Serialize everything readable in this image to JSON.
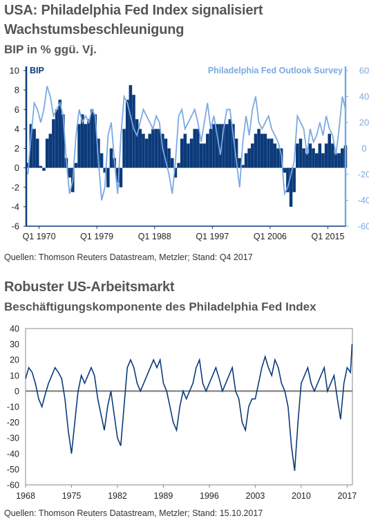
{
  "chart_data": [
    {
      "type": "bar",
      "title": "USA: Philadelphia Fed Index signalisiert Wachstumsbeschleunigung",
      "subtitle": "BIP in % ggü. Vj.",
      "source": "Quellen: Thomson Reuters Datastream, Metzler; Stand: Q4 2017",
      "left_axis_label": "BIP",
      "right_axis_label": "Philadelphia Fed Outlook Survey",
      "ylim": [
        -6,
        10
      ],
      "y_ticks": [
        "10",
        "8",
        "6",
        "4",
        "2",
        "0",
        "-2",
        "-4",
        "-6"
      ],
      "y2lim": [
        -60,
        60
      ],
      "y2_ticks": [
        "60",
        "40",
        "20",
        "0",
        "-20",
        "-40",
        "-60"
      ],
      "x_tick_labels": [
        "Q1 1970",
        "Q1 1979",
        "Q1 1988",
        "Q1 1997",
        "Q1 2006",
        "Q1 2015"
      ],
      "xlim": [
        1968.0,
        2017.75
      ],
      "colors": {
        "bars": "#0b3a7a",
        "line": "#7aa9e3",
        "axis_left": "#0b3a7a",
        "axis_right": "#7aa9e3"
      },
      "series": [
        {
          "name": "BIP",
          "kind": "bar",
          "x": [
            1968,
            1968.5,
            1969,
            1969.5,
            1970,
            1970.5,
            1971,
            1971.5,
            1972,
            1972.5,
            1973,
            1973.5,
            1974,
            1974.5,
            1975,
            1975.5,
            1976,
            1976.5,
            1977,
            1977.5,
            1978,
            1978.5,
            1979,
            1979.5,
            1980,
            1980.5,
            1981,
            1981.5,
            1982,
            1982.5,
            1983,
            1983.5,
            1984,
            1984.5,
            1985,
            1985.5,
            1986,
            1986.5,
            1987,
            1987.5,
            1988,
            1988.5,
            1989,
            1989.5,
            1990,
            1990.5,
            1991,
            1991.5,
            1992,
            1992.5,
            1993,
            1993.5,
            1994,
            1994.5,
            1995,
            1995.5,
            1996,
            1996.5,
            1997,
            1997.5,
            1998,
            1998.5,
            1999,
            1999.5,
            2000,
            2000.5,
            2001,
            2001.5,
            2002,
            2002.5,
            2003,
            2003.5,
            2004,
            2004.5,
            2005,
            2005.5,
            2006,
            2006.5,
            2007,
            2007.5,
            2008,
            2008.5,
            2009,
            2009.5,
            2010,
            2010.5,
            2011,
            2011.5,
            2012,
            2012.5,
            2013,
            2013.5,
            2014,
            2014.5,
            2015,
            2015.5,
            2016,
            2016.5,
            2017,
            2017.5
          ],
          "values": [
            0.5,
            4.5,
            4.0,
            3.0,
            0.2,
            -0.3,
            3.0,
            3.5,
            5.0,
            6.0,
            7.0,
            5.5,
            1.0,
            -1.0,
            -2.5,
            0.5,
            4.5,
            5.5,
            4.5,
            5.0,
            6.0,
            5.5,
            3.0,
            1.5,
            -0.5,
            -2.0,
            2.0,
            1.0,
            -1.5,
            -2.0,
            4.0,
            7.0,
            8.5,
            7.5,
            5.0,
            4.0,
            3.5,
            3.0,
            3.5,
            4.0,
            4.0,
            4.0,
            3.5,
            3.0,
            2.0,
            1.0,
            -1.0,
            0.5,
            3.0,
            3.5,
            2.5,
            3.0,
            4.0,
            4.0,
            2.5,
            2.5,
            3.5,
            4.0,
            4.5,
            4.5,
            4.5,
            4.5,
            4.5,
            5.0,
            4.5,
            3.0,
            1.0,
            0.3,
            1.5,
            2.0,
            2.5,
            3.5,
            4.0,
            3.5,
            3.5,
            3.0,
            3.0,
            2.5,
            2.0,
            2.0,
            -0.5,
            -2.5,
            -4.0,
            -2.5,
            2.5,
            3.0,
            2.0,
            1.5,
            2.5,
            2.0,
            1.5,
            2.5,
            1.5,
            2.5,
            3.5,
            2.5,
            1.5,
            1.5,
            2.0,
            2.3
          ]
        },
        {
          "name": "Philadelphia Fed Outlook Survey",
          "kind": "line",
          "axis": "right",
          "x": [
            1968,
            1968.5,
            1969,
            1969.5,
            1970,
            1970.5,
            1971,
            1971.5,
            1972,
            1972.5,
            1973,
            1973.5,
            1974,
            1974.5,
            1975,
            1975.5,
            1976,
            1976.5,
            1977,
            1977.5,
            1978,
            1978.5,
            1979,
            1979.5,
            1980,
            1980.5,
            1981,
            1981.5,
            1982,
            1982.5,
            1983,
            1983.5,
            1984,
            1984.5,
            1985,
            1985.5,
            1986,
            1986.5,
            1987,
            1987.5,
            1988,
            1988.5,
            1989,
            1989.5,
            1990,
            1990.5,
            1991,
            1991.5,
            1992,
            1992.5,
            1993,
            1993.5,
            1994,
            1994.5,
            1995,
            1995.5,
            1996,
            1996.5,
            1997,
            1997.5,
            1998,
            1998.5,
            1999,
            1999.5,
            2000,
            2000.5,
            2001,
            2001.5,
            2002,
            2002.5,
            2003,
            2003.5,
            2004,
            2004.5,
            2005,
            2005.5,
            2006,
            2006.5,
            2007,
            2007.5,
            2008,
            2008.5,
            2009,
            2009.5,
            2010,
            2010.5,
            2011,
            2011.5,
            2012,
            2012.5,
            2013,
            2013.5,
            2014,
            2014.5,
            2015,
            2015.5,
            2016,
            2016.5,
            2017,
            2017.5
          ],
          "values": [
            -20,
            10,
            35,
            30,
            20,
            30,
            48,
            40,
            25,
            30,
            35,
            25,
            -10,
            -35,
            -25,
            10,
            30,
            20,
            25,
            20,
            30,
            25,
            -10,
            -40,
            -30,
            10,
            20,
            -10,
            -35,
            10,
            40,
            35,
            25,
            15,
            10,
            20,
            30,
            25,
            20,
            15,
            25,
            20,
            0,
            -10,
            -20,
            -35,
            -10,
            25,
            30,
            15,
            20,
            25,
            30,
            20,
            5,
            20,
            35,
            15,
            25,
            10,
            -5,
            15,
            30,
            30,
            10,
            -10,
            -30,
            5,
            25,
            10,
            30,
            40,
            20,
            15,
            20,
            25,
            15,
            10,
            5,
            -5,
            -35,
            -30,
            -20,
            -10,
            25,
            20,
            15,
            -5,
            15,
            5,
            10,
            20,
            10,
            25,
            15,
            10,
            -5,
            15,
            40,
            30
          ]
        }
      ]
    },
    {
      "type": "line",
      "title": "Robuster US-Arbeitsmarkt",
      "subtitle": "Beschäftigungskomponente des Philadelphia Fed Index",
      "source": "Quellen: Thomson Reuters Datastream, Metzler; Stand: 15.10.2017",
      "ylim": [
        -60,
        40
      ],
      "y_ticks": [
        "40",
        "30",
        "20",
        "10",
        "0",
        "-10",
        "-20",
        "-30",
        "-40",
        "-50",
        "-60"
      ],
      "x_tick_labels": [
        "1968",
        "1975",
        "1982",
        "1989",
        "1996",
        "2003",
        "2010",
        "2017"
      ],
      "xlim": [
        1968,
        2017.8
      ],
      "colors": {
        "line": "#0b3a7a",
        "zero_line": "#777777"
      },
      "series": [
        {
          "name": "",
          "x": [
            1968,
            1968.5,
            1969,
            1969.5,
            1970,
            1970.5,
            1971,
            1971.5,
            1972,
            1972.5,
            1973,
            1973.5,
            1974,
            1974.5,
            1975,
            1975.5,
            1976,
            1976.5,
            1977,
            1977.5,
            1978,
            1978.5,
            1979,
            1979.5,
            1980,
            1980.5,
            1981,
            1981.5,
            1982,
            1982.5,
            1983,
            1983.5,
            1984,
            1984.5,
            1985,
            1985.5,
            1986,
            1986.5,
            1987,
            1987.5,
            1988,
            1988.5,
            1989,
            1989.5,
            1990,
            1990.5,
            1991,
            1991.5,
            1992,
            1992.5,
            1993,
            1993.5,
            1994,
            1994.5,
            1995,
            1995.5,
            1996,
            1996.5,
            1997,
            1997.5,
            1998,
            1998.5,
            1999,
            1999.5,
            2000,
            2000.5,
            2001,
            2001.5,
            2002,
            2002.5,
            2003,
            2003.5,
            2004,
            2004.5,
            2005,
            2005.5,
            2006,
            2006.5,
            2007,
            2007.5,
            2008,
            2008.5,
            2009,
            2009.5,
            2010,
            2010.5,
            2011,
            2011.5,
            2012,
            2012.5,
            2013,
            2013.5,
            2014,
            2014.5,
            2015,
            2015.5,
            2016,
            2016.5,
            2017,
            2017.5,
            2017.75
          ],
          "values": [
            8,
            15,
            12,
            5,
            -5,
            -10,
            -2,
            5,
            10,
            15,
            12,
            8,
            -5,
            -25,
            -40,
            -20,
            0,
            10,
            5,
            10,
            15,
            10,
            -5,
            -15,
            -25,
            -10,
            0,
            -15,
            -30,
            -35,
            -10,
            15,
            20,
            15,
            5,
            0,
            5,
            10,
            15,
            20,
            15,
            20,
            5,
            0,
            -10,
            -20,
            -25,
            -10,
            0,
            -5,
            0,
            5,
            15,
            20,
            5,
            0,
            5,
            10,
            15,
            8,
            0,
            5,
            10,
            15,
            0,
            -5,
            -20,
            -25,
            -10,
            -5,
            -5,
            5,
            15,
            22,
            15,
            10,
            20,
            15,
            5,
            0,
            -10,
            -35,
            -51,
            -20,
            5,
            10,
            15,
            5,
            0,
            5,
            10,
            15,
            0,
            5,
            10,
            -5,
            -18,
            5,
            15,
            12,
            30
          ]
        }
      ]
    }
  ]
}
